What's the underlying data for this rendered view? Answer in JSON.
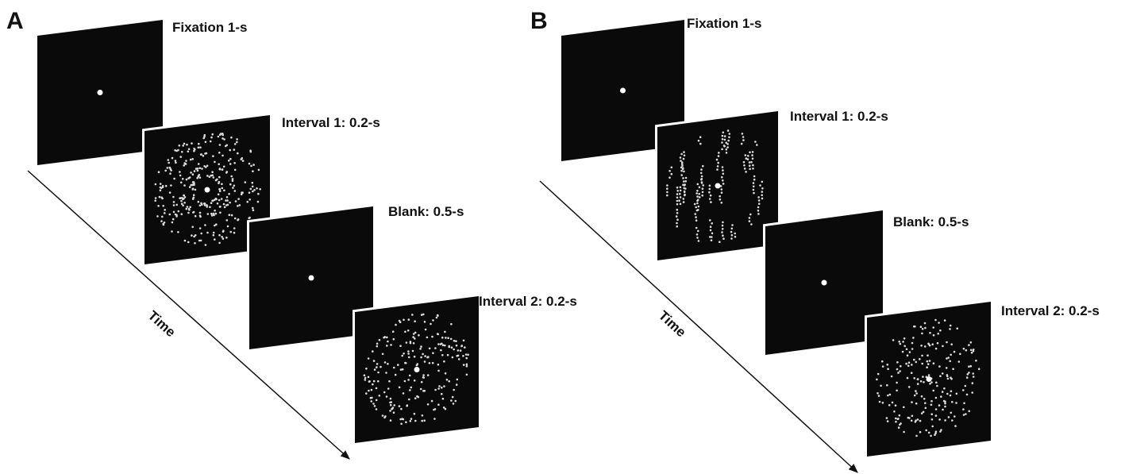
{
  "panels": [
    {
      "letter": "A",
      "time_label": "Time",
      "screens": [
        {
          "label": "Fixation 1-s"
        },
        {
          "label": "Interval 1: 0.2-s"
        },
        {
          "label": "Blank: 0.5-s"
        },
        {
          "label": "Interval 2: 0.2-s"
        }
      ]
    },
    {
      "letter": "B",
      "time_label": "Time",
      "screens": [
        {
          "label": "Fixation 1-s"
        },
        {
          "label": "Interval 1: 0.2-s"
        },
        {
          "label": "Blank: 0.5-s"
        },
        {
          "label": "Interval 2: 0.2-s"
        }
      ]
    }
  ]
}
